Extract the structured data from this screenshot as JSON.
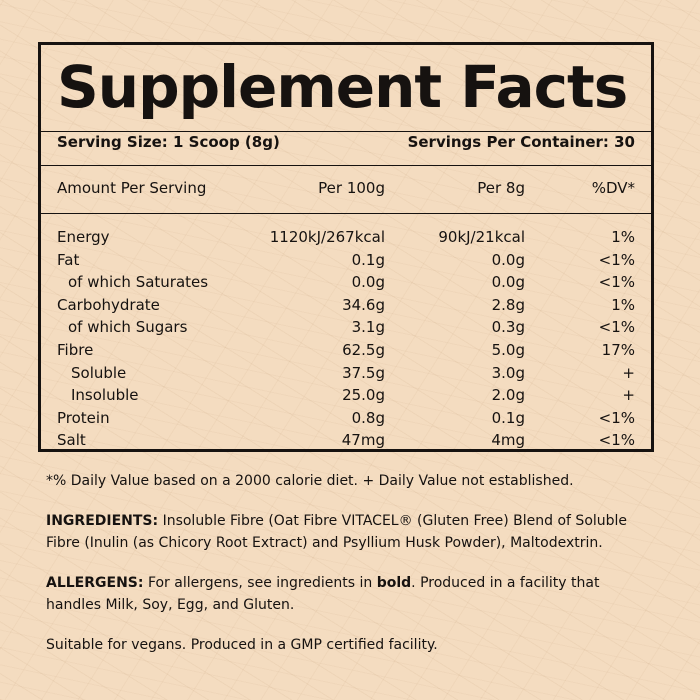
{
  "title": "Supplement Facts",
  "serving_size": "Serving Size: 1 Scoop (8g)",
  "servings_per_container": "Servings Per Container: 30",
  "header": {
    "amount": "Amount Per Serving",
    "per100": "Per 100g",
    "per8": "Per 8g",
    "dv": "%DV*"
  },
  "nutrients": [
    {
      "name": "Energy",
      "per100": "1120kJ/267kcal",
      "per8": "90kJ/21kcal",
      "dv": "1%"
    },
    {
      "name": "Fat",
      "per100": "0.1g",
      "per8": "0.0g",
      "dv": "<1%"
    },
    {
      "name": "of which Saturates",
      "per100": "0.0g",
      "per8": "0.0g",
      "dv": "<1%"
    },
    {
      "name": "Carbohydrate",
      "per100": "34.6g",
      "per8": "2.8g",
      "dv": "1%"
    },
    {
      "name": "of which Sugars",
      "per100": "3.1g",
      "per8": "0.3g",
      "dv": "<1%"
    },
    {
      "name": "Fibre",
      "per100": "62.5g",
      "per8": "5.0g",
      "dv": "17%"
    },
    {
      "name": "Soluble",
      "per100": "37.5g",
      "per8": "3.0g",
      "dv": "+"
    },
    {
      "name": "Insoluble",
      "per100": "25.0g",
      "per8": "2.0g",
      "dv": "+"
    },
    {
      "name": "Protein",
      "per100": "0.8g",
      "per8": "0.1g",
      "dv": "<1%"
    },
    {
      "name": "Salt",
      "per100": "47mg",
      "per8": "4mg",
      "dv": "<1%"
    }
  ],
  "footnote": "*% Daily Value based on a 2000 calorie diet. + Daily Value not established.",
  "ingredients": {
    "label": "INGREDIENTS:",
    "text": "Insoluble Fibre (Oat Fibre VITACEL® (Gluten Free) Blend of Soluble Fibre (Inulin (as Chicory Root Extract) and Psyllium Husk Powder), Maltodextrin."
  },
  "allergens": {
    "label": "ALLERGENS:",
    "text_before": "For allergens, see ingredients in ",
    "bold_word": "bold",
    "text_after": ". Produced in a facility that handles Milk, Soy, Egg, and Gluten."
  },
  "suitability": "Suitable for vegans. Produced in a GMP certified facility.",
  "colors": {
    "background": "#f4dcc0",
    "ink": "#161210"
  }
}
